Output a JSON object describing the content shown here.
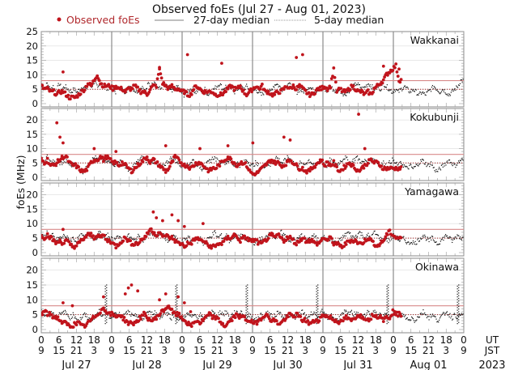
{
  "chart_data": {
    "type": "scatter",
    "title": "Observed foEs (Jul 27 - Aug 01, 2023)",
    "ylabel": "foEs (MHz)",
    "legend": {
      "position": "top",
      "entries": [
        "Observed foEs",
        "27-day median",
        "5-day median"
      ]
    },
    "ylim": [
      0,
      25
    ],
    "y_ticks_first": [
      "0",
      "5",
      "10",
      "15",
      "20",
      "25"
    ],
    "y_ticks_other": [
      "0",
      "5",
      "10",
      "15",
      "20"
    ],
    "x_ticks_ut": [
      "0",
      "6",
      "12",
      "18",
      "0",
      "6",
      "12",
      "18",
      "0",
      "6",
      "12",
      "18",
      "0",
      "6",
      "12",
      "18",
      "0",
      "6",
      "12",
      "18",
      "0",
      "6",
      "12",
      "18",
      "0"
    ],
    "x_ticks_jst": [
      "9",
      "15",
      "21",
      "3",
      "9",
      "15",
      "21",
      "3",
      "9",
      "15",
      "21",
      "3",
      "9",
      "15",
      "21",
      "3",
      "9",
      "15",
      "21",
      "3",
      "9",
      "15",
      "21",
      "3",
      "9"
    ],
    "x_row_labels": [
      "UT",
      "JST"
    ],
    "days": [
      "Jul 27",
      "Jul 28",
      "Jul 29",
      "Jul 30",
      "Jul 31",
      "Aug 01"
    ],
    "year": "2023",
    "reference_line_mhz": 8,
    "median_line_mhz": 5,
    "hours_per_sample": 2,
    "observed_end_hour": 123,
    "panels": [
      {
        "station": "Wakkanai",
        "observed": [
          6,
          5,
          5,
          4,
          4,
          3,
          4,
          4,
          3,
          2,
          2,
          2,
          3,
          4,
          5,
          7,
          6,
          8,
          10,
          7,
          6,
          6,
          6,
          5,
          6,
          5,
          5,
          4,
          5,
          5,
          6,
          5,
          4,
          4,
          3,
          5,
          6,
          6,
          12,
          7,
          6,
          5,
          6,
          5,
          5,
          4,
          4,
          3,
          3,
          5,
          6,
          5,
          4,
          4,
          4,
          4,
          3,
          3,
          3,
          4,
          5,
          6,
          5,
          5,
          6,
          4,
          3,
          4,
          5,
          6,
          5,
          6,
          4,
          4,
          3,
          3,
          4,
          4,
          5,
          6,
          5,
          6,
          5,
          6,
          5,
          4,
          3,
          3,
          4,
          5,
          5,
          6,
          5,
          6,
          12,
          4,
          5,
          4,
          4,
          5,
          6,
          5,
          4,
          4,
          3,
          4,
          3,
          5,
          6,
          7,
          8,
          10,
          11,
          12,
          13,
          8
        ],
        "observed_spikes": [
          [
            7,
            11
          ],
          [
            38,
            12
          ],
          [
            47,
            17
          ],
          [
            58,
            14
          ],
          [
            82,
            16
          ],
          [
            84,
            17
          ],
          [
            110,
            13
          ],
          [
            115,
            12
          ]
        ],
        "median5": [
          6,
          5,
          7,
          5,
          6,
          4,
          7,
          5,
          6,
          5,
          4,
          5,
          4,
          5,
          6,
          5,
          7,
          6,
          8,
          5,
          7,
          6,
          5,
          6,
          5,
          4,
          6,
          5,
          4,
          5,
          6,
          5,
          4,
          5,
          6,
          4,
          7,
          6,
          8,
          6,
          5,
          7,
          6,
          5,
          4,
          5,
          6,
          4,
          3,
          4,
          5,
          5,
          4,
          5,
          4,
          5,
          3,
          4,
          5,
          6,
          7,
          5,
          6,
          5,
          6,
          4,
          5,
          6,
          5,
          6,
          5,
          4,
          5,
          4,
          3,
          4,
          5,
          4,
          6,
          7,
          6,
          5,
          6,
          7,
          6,
          5,
          4,
          5,
          4,
          5,
          6,
          5,
          4,
          5,
          6,
          5,
          4,
          6,
          5,
          4,
          5,
          4,
          3,
          4,
          5,
          6,
          7,
          6,
          5,
          6,
          7,
          6,
          5,
          6,
          5,
          7,
          6,
          5,
          4,
          5,
          4,
          5,
          6,
          5,
          4,
          5,
          4,
          3,
          4,
          3,
          4,
          5,
          6,
          5,
          4,
          5,
          4,
          3,
          4,
          5,
          6,
          8
        ]
      },
      {
        "station": "Kokubunji",
        "observed": [
          6,
          5,
          6,
          4,
          4,
          5,
          6,
          7,
          7,
          5,
          4,
          4,
          3,
          2,
          2,
          3,
          5,
          6,
          6,
          7,
          6,
          7,
          6,
          5,
          5,
          4,
          5,
          4,
          3,
          2,
          3,
          4,
          5,
          6,
          7,
          5,
          6,
          5,
          4,
          3,
          2,
          3,
          5,
          7,
          6,
          5,
          4,
          4,
          3,
          4,
          5,
          5,
          4,
          3,
          2,
          3,
          3,
          4,
          5,
          6,
          7,
          6,
          5,
          4,
          5,
          5,
          4,
          2,
          1,
          1,
          2,
          3,
          4,
          5,
          6,
          5,
          5,
          4,
          4,
          5,
          6,
          5,
          4,
          3,
          3,
          2,
          2,
          3,
          4,
          5,
          6,
          4,
          5,
          4,
          5,
          3,
          2,
          3,
          4,
          5,
          4,
          3,
          2,
          3,
          4,
          5,
          6,
          5,
          5,
          4,
          3,
          3,
          3,
          3,
          3,
          3
        ],
        "observed_spikes": [
          [
            5,
            19
          ],
          [
            6,
            14
          ],
          [
            7,
            12
          ],
          [
            17,
            10
          ],
          [
            24,
            9
          ],
          [
            40,
            11
          ],
          [
            51,
            10
          ],
          [
            60,
            11
          ],
          [
            68,
            12
          ],
          [
            78,
            14
          ],
          [
            80,
            13
          ],
          [
            102,
            22
          ],
          [
            104,
            10
          ]
        ],
        "median5": [
          6,
          5,
          7,
          5,
          6,
          4,
          5,
          5,
          6,
          5,
          4,
          5,
          4,
          3,
          2,
          3,
          5,
          6,
          7,
          6,
          7,
          6,
          5,
          6,
          5,
          4,
          6,
          5,
          4,
          3,
          2,
          4,
          5,
          6,
          7,
          6,
          5,
          6,
          5,
          4,
          3,
          4,
          5,
          6,
          7,
          6,
          5,
          4,
          5,
          4,
          5,
          6,
          5,
          4,
          3,
          4,
          5,
          6,
          7,
          6,
          5,
          6,
          5,
          6,
          5,
          4,
          5,
          4,
          5,
          6,
          5,
          4,
          5,
          4,
          3,
          4,
          5,
          4,
          6,
          7,
          6,
          5,
          6,
          7,
          6,
          5,
          4,
          5,
          4,
          5,
          6,
          5,
          4,
          5,
          6,
          5,
          4,
          6,
          5,
          4,
          5,
          6,
          7,
          6,
          5,
          6,
          7,
          6,
          5,
          6,
          5,
          7,
          6,
          5,
          4,
          5,
          4,
          5,
          6,
          5,
          4,
          5,
          4,
          3,
          4,
          3,
          4,
          5,
          6,
          5,
          4,
          5,
          3,
          2,
          3,
          4,
          5,
          6,
          5,
          4,
          5,
          6
        ]
      },
      {
        "station": "Yamagawa",
        "observed": [
          6,
          5,
          6,
          5,
          4,
          3,
          4,
          3,
          4,
          3,
          2,
          2,
          3,
          4,
          5,
          6,
          6,
          5,
          6,
          5,
          6,
          4,
          4,
          3,
          2,
          3,
          4,
          5,
          4,
          3,
          3,
          3,
          4,
          5,
          6,
          8,
          7,
          6,
          7,
          5,
          6,
          5,
          5,
          4,
          3,
          3,
          2,
          3,
          3,
          4,
          5,
          4,
          4,
          3,
          2,
          2,
          2,
          3,
          3,
          4,
          5,
          5,
          6,
          5,
          4,
          5,
          5,
          4,
          4,
          4,
          3,
          3,
          4,
          5,
          6,
          5,
          6,
          5,
          4,
          5,
          5,
          4,
          3,
          4,
          5,
          4,
          4,
          4,
          3,
          3,
          4,
          5,
          4,
          5,
          3,
          3,
          2,
          2,
          3,
          4,
          4,
          4,
          3,
          3,
          4,
          5,
          4,
          3,
          2,
          3,
          4,
          6,
          7,
          6,
          5,
          5
        ],
        "observed_spikes": [
          [
            7,
            8
          ],
          [
            36,
            14
          ],
          [
            37,
            12
          ],
          [
            39,
            11
          ],
          [
            42,
            13
          ],
          [
            44,
            11
          ],
          [
            46,
            9
          ],
          [
            52,
            10
          ],
          [
            74,
            6
          ]
        ],
        "median5": [
          6,
          5,
          7,
          5,
          6,
          4,
          5,
          5,
          6,
          5,
          4,
          5,
          4,
          5,
          6,
          5,
          7,
          6,
          5,
          5,
          7,
          6,
          5,
          6,
          5,
          4,
          6,
          5,
          4,
          5,
          6,
          5,
          4,
          5,
          6,
          4,
          5,
          6,
          7,
          6,
          5,
          7,
          6,
          5,
          4,
          5,
          6,
          4,
          3,
          4,
          5,
          5,
          4,
          5,
          4,
          5,
          3,
          4,
          5,
          6,
          7,
          5,
          6,
          5,
          6,
          4,
          5,
          6,
          5,
          6,
          5,
          4,
          5,
          4,
          3,
          4,
          5,
          4,
          6,
          7,
          6,
          5,
          6,
          7,
          6,
          5,
          4,
          5,
          4,
          5,
          6,
          5,
          4,
          5,
          6,
          5,
          4,
          6,
          5,
          4,
          5,
          4,
          3,
          4,
          5,
          6,
          7,
          6,
          5,
          6,
          7,
          6,
          5,
          6,
          5,
          7,
          6,
          5,
          4,
          5,
          4,
          5,
          6,
          5,
          4,
          5,
          4,
          3,
          4,
          3,
          4,
          5,
          6,
          5,
          4,
          5,
          4,
          3,
          4,
          5,
          6,
          5,
          4,
          5,
          6,
          5
        ]
      },
      {
        "station": "Okinawa",
        "observed": [
          5,
          6,
          5,
          5,
          4,
          4,
          3,
          2,
          2,
          1,
          1,
          2,
          2,
          1,
          1,
          2,
          3,
          4,
          5,
          6,
          7,
          6,
          5,
          5,
          4,
          5,
          4,
          3,
          2,
          2,
          2,
          3,
          4,
          5,
          4,
          3,
          3,
          4,
          5,
          6,
          7,
          8,
          6,
          5,
          5,
          4,
          3,
          2,
          1,
          2,
          3,
          2,
          3,
          4,
          5,
          4,
          4,
          3,
          2,
          1,
          2,
          3,
          4,
          5,
          4,
          4,
          3,
          3,
          2,
          2,
          3,
          4,
          5,
          4,
          3,
          3,
          2,
          2,
          3,
          4,
          5,
          4,
          5,
          4,
          3,
          3,
          2,
          2,
          3,
          3,
          4,
          5,
          4,
          4,
          3,
          3,
          2,
          3,
          4,
          3,
          3,
          4,
          5,
          4,
          4,
          3,
          4,
          5,
          4,
          5,
          3,
          4,
          4,
          6,
          5,
          5
        ],
        "observed_spikes": [
          [
            7,
            9
          ],
          [
            10,
            8
          ],
          [
            20,
            11
          ],
          [
            27,
            12
          ],
          [
            28,
            14
          ],
          [
            29,
            15
          ],
          [
            31,
            13
          ],
          [
            38,
            10
          ],
          [
            40,
            12
          ],
          [
            44,
            11
          ],
          [
            46,
            9
          ],
          [
            48,
            6
          ]
        ],
        "median5": [
          6,
          5,
          6,
          5,
          6,
          4,
          5,
          5,
          6,
          5,
          4,
          5,
          4,
          3,
          4,
          5,
          4,
          3,
          4,
          5,
          6,
          5,
          6,
          5,
          4,
          5,
          6,
          5,
          4,
          5,
          6,
          5,
          4,
          5,
          4,
          3,
          5,
          6,
          5,
          6,
          5,
          4,
          5,
          6,
          5,
          4,
          5,
          4,
          3,
          4,
          5,
          5,
          4,
          5,
          4,
          5,
          3,
          4,
          5,
          6,
          5,
          5,
          6,
          5,
          6,
          4,
          5,
          6,
          5,
          6,
          5,
          4,
          5,
          4,
          3,
          4,
          5,
          4,
          6,
          5,
          4,
          5,
          6,
          5,
          4,
          5,
          4,
          5,
          4,
          5,
          6,
          5,
          4,
          5,
          6,
          5,
          4,
          6,
          5,
          4,
          5,
          4,
          3,
          4,
          5,
          6,
          5,
          6,
          5,
          6,
          5,
          4,
          5,
          6,
          5,
          6,
          5,
          5,
          4,
          5,
          4,
          5,
          6,
          5,
          4,
          5,
          4,
          3,
          4,
          3,
          4,
          5,
          6,
          5,
          4,
          5,
          4,
          3,
          4,
          5,
          6,
          5,
          4,
          5,
          4,
          5
        ],
        "median_spike_hours": [
          22,
          46,
          70,
          94,
          118,
          142
        ]
      }
    ],
    "colors": {
      "observed": "#c0141c",
      "reference_line": "#d88a8a",
      "median_dotted": "#a02020",
      "day_separator": "#8a8a8a",
      "grid": "#dcdcdc"
    }
  }
}
